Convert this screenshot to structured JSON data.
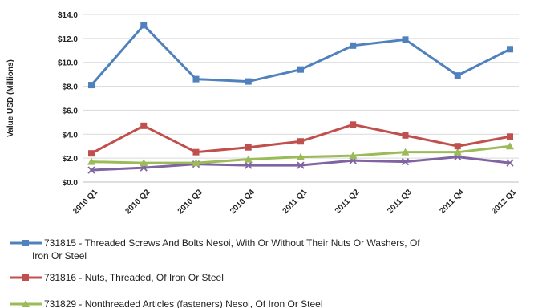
{
  "chart_data": {
    "type": "line",
    "title": "",
    "xlabel": "",
    "ylabel": "Value USD (Millions)",
    "ylim": [
      0,
      14
    ],
    "ytick_labels": [
      "$0.0",
      "$2.0",
      "$4.0",
      "$6.0",
      "$8.0",
      "$10.0",
      "$12.0",
      "$14.0"
    ],
    "ytick_values": [
      0,
      2,
      4,
      6,
      8,
      10,
      12,
      14
    ],
    "grid": true,
    "legend_position": "bottom",
    "categories": [
      "2010 Q1",
      "2010 Q2",
      "2010 Q3",
      "2010 Q4",
      "2011 Q1",
      "2011 Q2",
      "2011 Q3",
      "2011 Q4",
      "2012 Q1"
    ],
    "series": [
      {
        "name": "731815 - Threaded Screws And Bolts Nesoi, With Or Without Their Nuts Or Washers, Of Iron Or Steel",
        "values": [
          8.1,
          13.1,
          8.6,
          8.4,
          9.4,
          11.4,
          11.9,
          8.9,
          11.1
        ],
        "color": "#4f81bd",
        "marker": "square"
      },
      {
        "name": "731816 - Nuts, Threaded, Of Iron Or Steel",
        "values": [
          2.4,
          4.7,
          2.5,
          2.9,
          3.4,
          4.8,
          3.9,
          3.0,
          3.8
        ],
        "color": "#c0504d",
        "marker": "square"
      },
      {
        "name": "731829 - Nonthreaded Articles (fasteners) Nesoi, Of Iron Or Steel",
        "values": [
          1.7,
          1.6,
          1.6,
          1.9,
          2.1,
          2.2,
          2.5,
          2.5,
          3.0
        ],
        "color": "#9bbb59",
        "marker": "triangle"
      },
      {
        "name": "",
        "values": [
          1.0,
          1.2,
          1.5,
          1.4,
          1.4,
          1.8,
          1.7,
          2.1,
          1.6
        ],
        "color": "#8064a2",
        "marker": "x"
      }
    ]
  }
}
